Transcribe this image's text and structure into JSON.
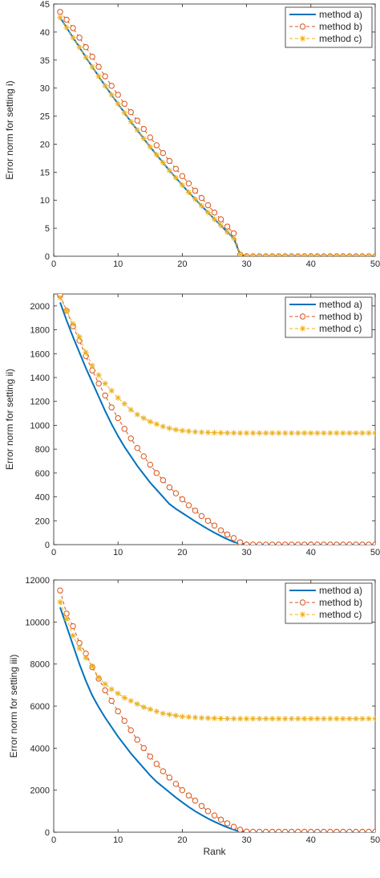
{
  "colors": {
    "method_a": "#0072bd",
    "method_b": "#d95319",
    "method_c": "#edb120",
    "axes": "#262626"
  },
  "chart_data": [
    {
      "type": "line",
      "title": "",
      "xlabel": "",
      "ylabel": "Error norm for setting i)",
      "xlim": [
        0,
        50
      ],
      "ylim": [
        0,
        45
      ],
      "xticks": [
        0,
        10,
        20,
        30,
        40,
        50
      ],
      "yticks": [
        0,
        5,
        10,
        15,
        20,
        25,
        30,
        35,
        40,
        45
      ],
      "legend": "top-right",
      "grid": false,
      "x": [
        1,
        2,
        3,
        4,
        5,
        6,
        7,
        8,
        9,
        10,
        11,
        12,
        13,
        14,
        15,
        16,
        17,
        18,
        19,
        20,
        21,
        22,
        23,
        24,
        25,
        26,
        27,
        28,
        29,
        30,
        31,
        32,
        33,
        34,
        35,
        36,
        37,
        38,
        39,
        40,
        41,
        42,
        43,
        44,
        45,
        46,
        47,
        48,
        49,
        50
      ],
      "series": [
        {
          "name": "method a)",
          "marker": "none",
          "values": [
            42.6,
            40.8,
            39.0,
            37.3,
            35.5,
            33.8,
            32.1,
            30.4,
            28.8,
            27.2,
            25.6,
            24.0,
            22.5,
            21.0,
            19.5,
            18.1,
            16.7,
            15.3,
            14.0,
            12.7,
            11.4,
            10.2,
            9.0,
            7.8,
            6.6,
            5.5,
            4.3,
            3.2,
            0.3,
            0,
            0,
            0,
            0,
            0,
            0,
            0,
            0,
            0,
            0,
            0,
            0,
            0,
            0,
            0,
            0,
            0,
            0,
            0,
            0,
            0
          ]
        },
        {
          "name": "method b)",
          "marker": "circle",
          "values": [
            43.6,
            42.2,
            40.7,
            39.0,
            37.3,
            35.6,
            33.8,
            32.1,
            30.4,
            28.8,
            27.2,
            25.7,
            24.2,
            22.7,
            21.2,
            19.8,
            18.4,
            17.0,
            15.6,
            14.3,
            13.0,
            11.7,
            10.4,
            9.1,
            7.8,
            6.6,
            5.3,
            4.1,
            0.3,
            0,
            0,
            0,
            0,
            0,
            0,
            0,
            0,
            0,
            0,
            0,
            0,
            0,
            0,
            0,
            0,
            0,
            0,
            0,
            0,
            0
          ]
        },
        {
          "name": "method c)",
          "marker": "star",
          "values": [
            42.6,
            40.8,
            39.0,
            37.3,
            35.5,
            33.8,
            32.1,
            30.4,
            28.8,
            27.2,
            25.6,
            24.0,
            22.5,
            21.0,
            19.5,
            18.1,
            16.7,
            15.3,
            14.0,
            12.7,
            11.4,
            10.2,
            9.0,
            7.8,
            6.6,
            5.5,
            4.3,
            3.2,
            0.3,
            0,
            0,
            0,
            0,
            0,
            0,
            0,
            0,
            0,
            0,
            0,
            0,
            0,
            0,
            0,
            0,
            0,
            0,
            0,
            0,
            0
          ]
        }
      ]
    },
    {
      "type": "line",
      "title": "",
      "xlabel": "",
      "ylabel": "Error norm for setting ii)",
      "xlim": [
        0,
        50
      ],
      "ylim": [
        0,
        2100
      ],
      "xticks": [
        0,
        10,
        20,
        30,
        40,
        50
      ],
      "yticks": [
        0,
        200,
        400,
        600,
        800,
        1000,
        1200,
        1400,
        1600,
        1800,
        2000
      ],
      "legend": "top-right",
      "grid": false,
      "x": [
        1,
        2,
        3,
        4,
        5,
        6,
        7,
        8,
        9,
        10,
        11,
        12,
        13,
        14,
        15,
        16,
        17,
        18,
        19,
        20,
        21,
        22,
        23,
        24,
        25,
        26,
        27,
        28,
        29,
        30,
        31,
        32,
        33,
        34,
        35,
        36,
        37,
        38,
        39,
        40,
        41,
        42,
        43,
        44,
        45,
        46,
        47,
        48,
        49,
        50
      ],
      "series": [
        {
          "name": "method a)",
          "marker": "none",
          "values": [
            2030,
            1880,
            1740,
            1610,
            1480,
            1360,
            1240,
            1120,
            1010,
            910,
            820,
            740,
            660,
            590,
            520,
            460,
            400,
            340,
            300,
            265,
            230,
            195,
            162,
            130,
            100,
            72,
            46,
            22,
            8,
            0,
            0,
            0,
            0,
            0,
            0,
            0,
            0,
            0,
            0,
            0,
            0,
            0,
            0,
            0,
            0,
            0,
            0,
            0,
            0,
            0
          ]
        },
        {
          "name": "method b)",
          "marker": "circle",
          "values": [
            2090,
            1960,
            1830,
            1710,
            1580,
            1460,
            1350,
            1250,
            1150,
            1060,
            970,
            890,
            810,
            740,
            670,
            600,
            540,
            480,
            430,
            380,
            330,
            285,
            240,
            200,
            160,
            120,
            85,
            55,
            20,
            0,
            0,
            0,
            0,
            0,
            0,
            0,
            0,
            0,
            0,
            0,
            0,
            0,
            0,
            0,
            0,
            0,
            0,
            0,
            0,
            0
          ]
        },
        {
          "name": "method c)",
          "marker": "star",
          "values": [
            2070,
            1960,
            1850,
            1740,
            1610,
            1500,
            1420,
            1350,
            1290,
            1230,
            1180,
            1130,
            1090,
            1060,
            1030,
            1010,
            990,
            975,
            963,
            955,
            950,
            945,
            942,
            940,
            938,
            937,
            936,
            936,
            935,
            935,
            935,
            935,
            935,
            935,
            935,
            935,
            935,
            935,
            935,
            935,
            935,
            935,
            935,
            935,
            935,
            935,
            935,
            935,
            935,
            935
          ]
        }
      ]
    },
    {
      "type": "line",
      "title": "",
      "xlabel": "Rank",
      "ylabel": "Error norm for setting iii)",
      "xlim": [
        0,
        50
      ],
      "ylim": [
        0,
        12000
      ],
      "xticks": [
        0,
        10,
        20,
        30,
        40,
        50
      ],
      "yticks": [
        0,
        2000,
        4000,
        6000,
        8000,
        10000,
        12000
      ],
      "legend": "top-right",
      "grid": false,
      "x": [
        1,
        2,
        3,
        4,
        5,
        6,
        7,
        8,
        9,
        10,
        11,
        12,
        13,
        14,
        15,
        16,
        17,
        18,
        19,
        20,
        21,
        22,
        23,
        24,
        25,
        26,
        27,
        28,
        29,
        30,
        31,
        32,
        33,
        34,
        35,
        36,
        37,
        38,
        39,
        40,
        41,
        42,
        43,
        44,
        45,
        46,
        47,
        48,
        49,
        50
      ],
      "series": [
        {
          "name": "method a)",
          "marker": "none",
          "values": [
            10700,
            9800,
            8900,
            8000,
            7200,
            6500,
            5950,
            5450,
            5000,
            4550,
            4150,
            3750,
            3400,
            3050,
            2700,
            2400,
            2150,
            1900,
            1650,
            1420,
            1200,
            1000,
            820,
            650,
            500,
            360,
            230,
            120,
            30,
            0,
            0,
            0,
            0,
            0,
            0,
            0,
            0,
            0,
            0,
            0,
            0,
            0,
            0,
            0,
            0,
            0,
            0,
            0,
            0,
            0
          ]
        },
        {
          "name": "method b)",
          "marker": "circle",
          "values": [
            11500,
            10400,
            9800,
            9000,
            8500,
            7850,
            7300,
            6750,
            6250,
            5750,
            5300,
            4850,
            4400,
            4000,
            3600,
            3250,
            2900,
            2600,
            2300,
            2000,
            1750,
            1500,
            1250,
            1000,
            800,
            600,
            420,
            260,
            120,
            30,
            20,
            20,
            20,
            20,
            20,
            20,
            20,
            20,
            20,
            20,
            20,
            20,
            20,
            20,
            20,
            20,
            20,
            20,
            20,
            20
          ]
        },
        {
          "name": "method c)",
          "marker": "star",
          "values": [
            10950,
            10150,
            9350,
            8750,
            8300,
            7900,
            7350,
            7050,
            6800,
            6600,
            6400,
            6250,
            6100,
            5950,
            5850,
            5750,
            5650,
            5600,
            5550,
            5500,
            5480,
            5460,
            5440,
            5430,
            5420,
            5410,
            5405,
            5400,
            5400,
            5400,
            5400,
            5400,
            5400,
            5400,
            5400,
            5400,
            5400,
            5400,
            5400,
            5400,
            5400,
            5400,
            5400,
            5400,
            5400,
            5400,
            5400,
            5400,
            5400,
            5400
          ]
        }
      ]
    }
  ]
}
